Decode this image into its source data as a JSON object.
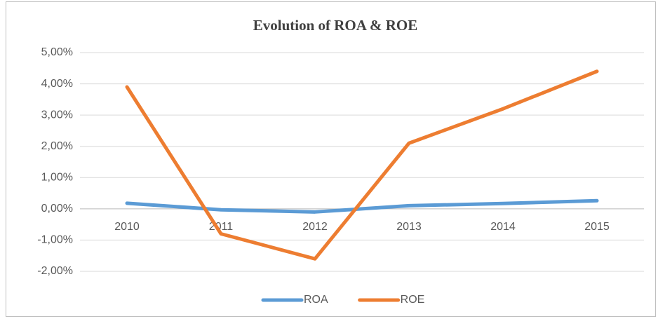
{
  "chart_data": {
    "type": "line",
    "title": "Evolution of ROA & ROE",
    "categories": [
      "2010",
      "2011",
      "2012",
      "2013",
      "2014",
      "2015"
    ],
    "series": [
      {
        "name": "ROA",
        "color": "#5b9bd5",
        "values": [
          0.18,
          -0.03,
          -0.1,
          0.1,
          0.17,
          0.26
        ]
      },
      {
        "name": "ROE",
        "color": "#ed7d31",
        "values": [
          3.9,
          -0.8,
          -1.6,
          2.1,
          3.2,
          4.4
        ]
      }
    ],
    "ylim": [
      -2,
      5
    ],
    "yticks": [
      {
        "value": -2,
        "label": "-2,00%"
      },
      {
        "value": -1,
        "label": "-1,00%"
      },
      {
        "value": 0,
        "label": "0,00%"
      },
      {
        "value": 1,
        "label": "1,00%"
      },
      {
        "value": 2,
        "label": "2,00%"
      },
      {
        "value": 3,
        "label": "3,00%"
      },
      {
        "value": 4,
        "label": "4,00%"
      },
      {
        "value": 5,
        "label": "5,00%"
      }
    ],
    "grid": true,
    "legend": "bottom"
  }
}
